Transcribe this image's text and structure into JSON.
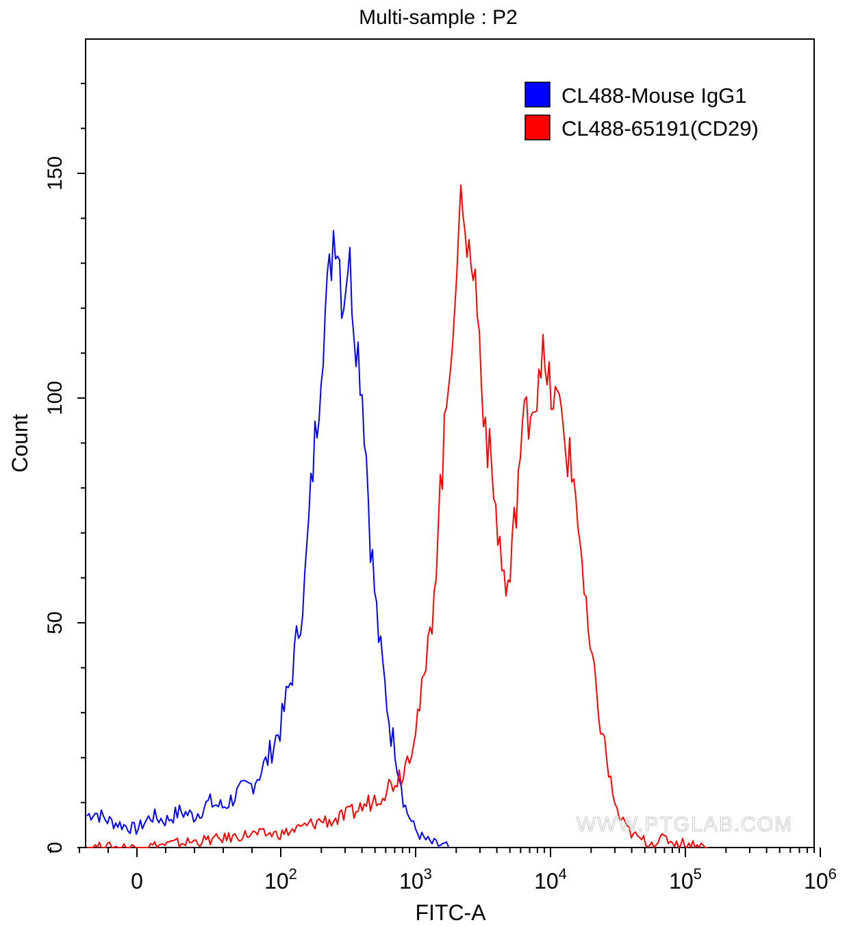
{
  "chart_data": {
    "type": "line",
    "title": "Multi-sample : P2",
    "xlabel": "FITC-A",
    "ylabel": "Count",
    "x_scale": "biexponential (linear near 0, log above ~10^2)",
    "y_ticks": [
      "0",
      "50",
      "100",
      "150"
    ],
    "x_ticks": [
      {
        "base": "0",
        "exp": ""
      },
      {
        "base": "10",
        "exp": "2"
      },
      {
        "base": "10",
        "exp": "3"
      },
      {
        "base": "10",
        "exp": "4"
      },
      {
        "base": "10",
        "exp": "5"
      },
      {
        "base": "10",
        "exp": "6"
      }
    ],
    "ylim": [
      0,
      170
    ],
    "legend_position": "top-right",
    "watermark": "WWW.PTGLAB.COM",
    "series": [
      {
        "name": "CL488-Mouse IgG1",
        "color": "#0000ff",
        "points": [
          [
            -60,
            3
          ],
          [
            -50,
            7
          ],
          [
            -40,
            6
          ],
          [
            -30,
            8
          ],
          [
            -20,
            6
          ],
          [
            -10,
            5
          ],
          [
            0,
            4
          ],
          [
            10,
            7
          ],
          [
            20,
            6
          ],
          [
            30,
            8
          ],
          [
            40,
            7
          ],
          [
            50,
            10
          ],
          [
            60,
            9
          ],
          [
            70,
            12
          ],
          [
            80,
            14
          ],
          [
            90,
            19
          ],
          [
            100,
            27
          ],
          [
            110,
            33
          ],
          [
            120,
            38
          ],
          [
            130,
            45
          ],
          [
            140,
            52
          ],
          [
            150,
            58
          ],
          [
            160,
            70
          ],
          [
            170,
            82
          ],
          [
            180,
            91
          ],
          [
            190,
            99
          ],
          [
            200,
            110
          ],
          [
            210,
            117
          ],
          [
            230,
            127
          ],
          [
            250,
            140
          ],
          [
            270,
            133
          ],
          [
            290,
            120
          ],
          [
            310,
            132
          ],
          [
            330,
            128
          ],
          [
            350,
            118
          ],
          [
            370,
            112
          ],
          [
            400,
            103
          ],
          [
            430,
            88
          ],
          [
            460,
            70
          ],
          [
            500,
            56
          ],
          [
            540,
            45
          ],
          [
            580,
            38
          ],
          [
            620,
            31
          ],
          [
            660,
            25
          ],
          [
            700,
            23
          ],
          [
            740,
            18
          ],
          [
            780,
            15
          ],
          [
            820,
            10
          ],
          [
            860,
            8
          ],
          [
            900,
            7
          ],
          [
            950,
            5
          ],
          [
            1000,
            4
          ],
          [
            1050,
            3
          ],
          [
            1150,
            2
          ],
          [
            1300,
            1
          ],
          [
            1500,
            0.5
          ],
          [
            1800,
            0
          ]
        ]
      },
      {
        "name": "CL488-65191(CD29)",
        "color": "#ff0000",
        "points": [
          [
            -60,
            0
          ],
          [
            0,
            0
          ],
          [
            30,
            1
          ],
          [
            60,
            2
          ],
          [
            80,
            3
          ],
          [
            100,
            3
          ],
          [
            130,
            4
          ],
          [
            160,
            5
          ],
          [
            200,
            6
          ],
          [
            250,
            6
          ],
          [
            300,
            7
          ],
          [
            350,
            8
          ],
          [
            400,
            9
          ],
          [
            450,
            10
          ],
          [
            500,
            11
          ],
          [
            550,
            12
          ],
          [
            600,
            13
          ],
          [
            650,
            14
          ],
          [
            700,
            15
          ],
          [
            750,
            16
          ],
          [
            800,
            17
          ],
          [
            850,
            19
          ],
          [
            900,
            22
          ],
          [
            950,
            24
          ],
          [
            1000,
            28
          ],
          [
            1100,
            33
          ],
          [
            1200,
            40
          ],
          [
            1300,
            49
          ],
          [
            1400,
            62
          ],
          [
            1500,
            77
          ],
          [
            1650,
            92
          ],
          [
            1800,
            110
          ],
          [
            1950,
            125
          ],
          [
            2100,
            133
          ],
          [
            2250,
            148
          ],
          [
            2400,
            136
          ],
          [
            2550,
            128
          ],
          [
            2700,
            130
          ],
          [
            2900,
            118
          ],
          [
            3100,
            104
          ],
          [
            3350,
            92
          ],
          [
            3600,
            85
          ],
          [
            3850,
            77
          ],
          [
            4100,
            70
          ],
          [
            4400,
            62
          ],
          [
            4700,
            57
          ],
          [
            5000,
            59
          ],
          [
            5400,
            72
          ],
          [
            5800,
            84
          ],
          [
            6200,
            92
          ],
          [
            6700,
            97
          ],
          [
            7200,
            99
          ],
          [
            7800,
            100
          ],
          [
            8500,
            112
          ],
          [
            9200,
            103
          ],
          [
            10000,
            101
          ],
          [
            11000,
            99
          ],
          [
            12000,
            96
          ],
          [
            13500,
            87
          ],
          [
            15000,
            81
          ],
          [
            16500,
            70
          ],
          [
            18000,
            53
          ],
          [
            20000,
            42
          ],
          [
            22000,
            33
          ],
          [
            25000,
            23
          ],
          [
            28000,
            14
          ],
          [
            31000,
            8
          ],
          [
            35000,
            5
          ],
          [
            40000,
            3
          ],
          [
            45000,
            2
          ],
          [
            55000,
            1
          ],
          [
            70000,
            2
          ],
          [
            85000,
            1
          ],
          [
            100000,
            1
          ],
          [
            120000,
            0.5
          ],
          [
            150000,
            0
          ]
        ]
      }
    ]
  }
}
